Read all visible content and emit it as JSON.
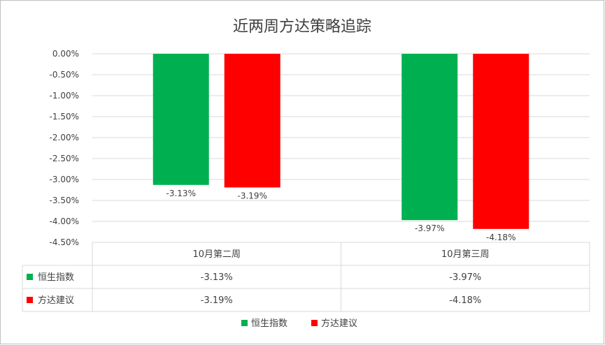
{
  "chart_data": {
    "type": "bar",
    "title": "近两周方达策略追踪",
    "categories": [
      "10月第二周",
      "10月第三周"
    ],
    "series": [
      {
        "name": "恒生指数",
        "values": [
          -3.13,
          -3.97
        ],
        "labels": [
          "-3.13%",
          "-3.97%"
        ],
        "color": "#00b050"
      },
      {
        "name": "方达建议",
        "values": [
          -3.19,
          -4.18
        ],
        "labels": [
          "-3.19%",
          "-4.18%"
        ],
        "color": "#ff0000"
      }
    ],
    "ylim": [
      -4.5,
      0
    ],
    "yticks": [
      "0.00%",
      "-0.50%",
      "-1.00%",
      "-1.50%",
      "-2.00%",
      "-2.50%",
      "-3.00%",
      "-3.50%",
      "-4.00%",
      "-4.50%"
    ],
    "grid": true,
    "legend": "bottom",
    "data_table": true
  }
}
